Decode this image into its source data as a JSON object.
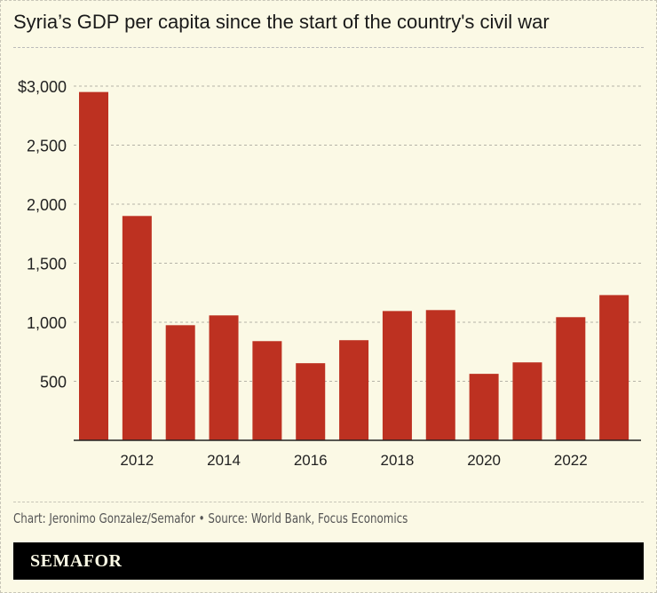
{
  "title": "Syria’s GDP per capita since the start of the country's civil war",
  "source": "Chart: Jeronimo Gonzalez/Semafor • Source: World Bank, Focus Economics",
  "brand": "SEMAFOR",
  "chart_data": {
    "type": "bar",
    "title": "Syria’s GDP per capita since the start of the country's civil war",
    "categories": [
      2011,
      2012,
      2013,
      2014,
      2015,
      2016,
      2017,
      2018,
      2019,
      2020,
      2021,
      2022,
      2023
    ],
    "values": [
      2950,
      1900,
      975,
      1058,
      840,
      653,
      848,
      1095,
      1103,
      563,
      660,
      1043,
      1230
    ],
    "ylim": [
      0,
      3000
    ],
    "yticks": [
      500,
      1000,
      1500,
      2000,
      2500,
      3000
    ],
    "ytick_labels": [
      "500",
      "1,000",
      "1,500",
      "2,000",
      "2,500",
      "$3,000"
    ],
    "xtick_labels": [
      "2012",
      "2014",
      "2016",
      "2018",
      "2020",
      "2022"
    ],
    "grid": true,
    "bar_color": "#bd3121"
  }
}
